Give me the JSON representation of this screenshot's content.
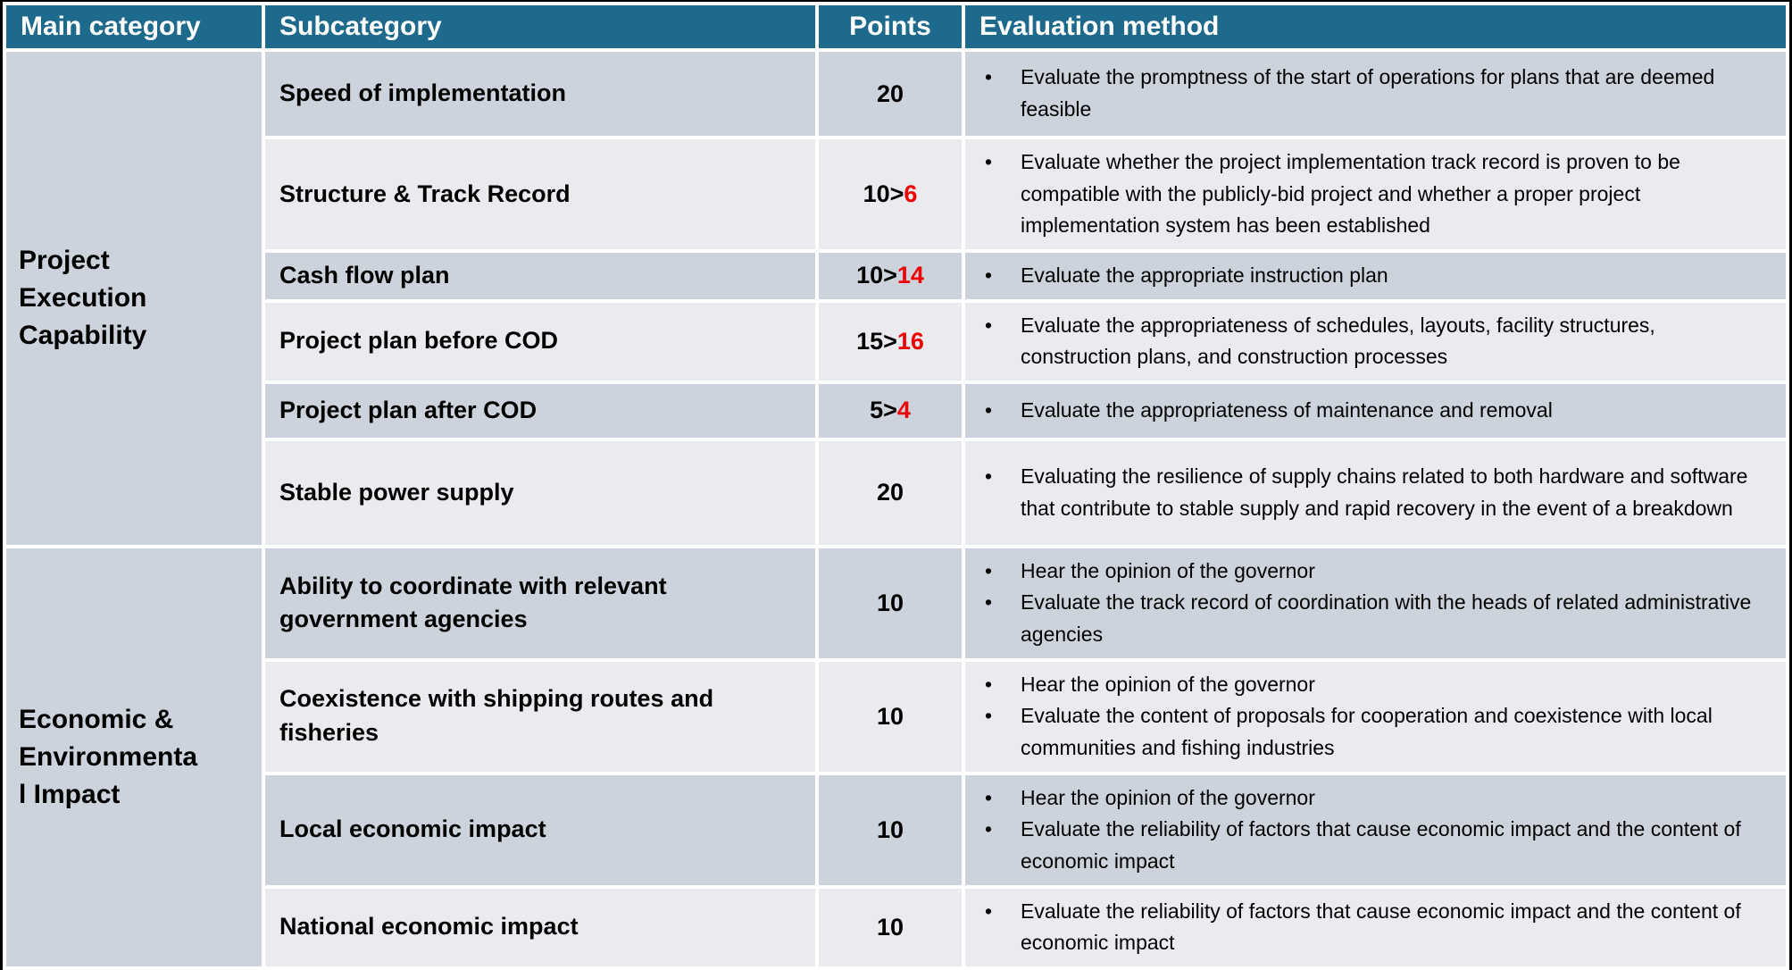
{
  "table": {
    "header": {
      "main_category": "Main category",
      "subcategory": "Subcategory",
      "points": "Points",
      "evaluation_method": "Evaluation method"
    },
    "bullet_glyph": "•",
    "points_separator": ">",
    "colors": {
      "header_bg": "#1E6A8C",
      "header_text": "#FFFFFF",
      "row_dark": "#CDD3DC",
      "row_light": "#E9EBEF",
      "points_change_red": "#F00000",
      "body_text": "#000000"
    },
    "sections": [
      {
        "category": "Project Execution Capability",
        "rows": [
          {
            "subcategory": "Speed of implementation",
            "points": "20",
            "points_changed": "",
            "bullets": [
              "Evaluate the promptness of the start of operations for plans that are deemed feasible"
            ]
          },
          {
            "subcategory": "Structure & Track Record",
            "points": "10",
            "points_changed": "6",
            "bullets": [
              "Evaluate whether the project implementation track record is proven to be compatible with the publicly-bid project and whether a proper project implementation system has been established"
            ]
          },
          {
            "subcategory": "Cash flow plan",
            "points": "10",
            "points_changed": "14",
            "bullets": [
              "Evaluate the appropriate instruction plan"
            ]
          },
          {
            "subcategory": "Project plan before COD",
            "points": "15",
            "points_changed": "16",
            "bullets": [
              "Evaluate the appropriateness of schedules, layouts, facility structures, construction plans, and construction processes"
            ]
          },
          {
            "subcategory": "Project plan after COD",
            "points": "5",
            "points_changed": "4",
            "bullets": [
              "Evaluate the appropriateness of maintenance and removal"
            ]
          },
          {
            "subcategory": "Stable power supply",
            "points": "20",
            "points_changed": "",
            "bullets": [
              "Evaluating the resilience of supply chains related to both hardware and software that contribute to stable supply and rapid recovery in the event of a breakdown"
            ]
          }
        ]
      },
      {
        "category": "Economic & Environmental Impact",
        "rows": [
          {
            "subcategory": "Ability to coordinate with relevant government agencies",
            "points": "10",
            "points_changed": "",
            "bullets": [
              "Hear the opinion of the governor",
              "Evaluate the track record of coordination with the heads of related administrative agencies"
            ]
          },
          {
            "subcategory": "Coexistence with shipping routes and fisheries",
            "points": "10",
            "points_changed": "",
            "bullets": [
              "Hear the opinion of the governor",
              "Evaluate the content of proposals for cooperation and coexistence with local communities and fishing industries"
            ]
          },
          {
            "subcategory": "Local economic impact",
            "points": "10",
            "points_changed": "",
            "bullets": [
              "Hear the opinion of the governor",
              "Evaluate the reliability of factors that cause economic impact and the content of economic impact"
            ]
          },
          {
            "subcategory": "National economic impact",
            "points": "10",
            "points_changed": "",
            "bullets": [
              "Evaluate the reliability of factors that cause economic impact and the content of economic impact"
            ]
          }
        ]
      }
    ]
  }
}
